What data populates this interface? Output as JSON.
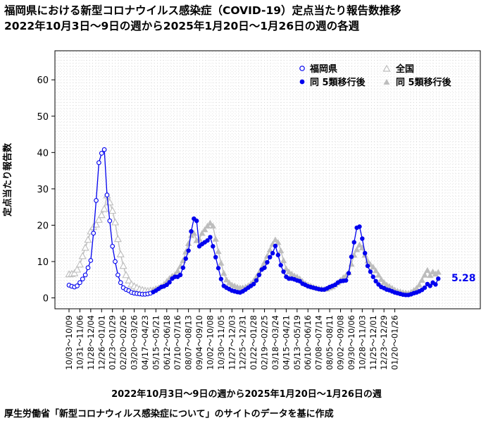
{
  "header": {
    "title": "福岡県における新型コロナウイルス感染症（COVID-19）定点当たり報告数推移",
    "subtitle": "2022年10月3日〜9日の週から2025年1月20日〜1月26日の週の各週"
  },
  "footer": {
    "x_caption": "2022年10月3日〜9日の週から2025年1月20日〜1月26日の週",
    "source": "厚生労働省「新型コロナウィルス感染症について」のサイトのデータを基に作成"
  },
  "colors": {
    "fukuoka": "#0000ee",
    "national": "#bdbdbd",
    "grid": "#d0d0d0"
  },
  "chart_data": {
    "type": "line",
    "ylabel": "定点当たり報告数",
    "ylim": [
      -3,
      68
    ],
    "yticks": [
      0,
      10,
      20,
      30,
      40,
      50,
      60
    ],
    "grid": true,
    "legend_position": "top-right",
    "legend": [
      {
        "label": "福岡県",
        "marker": "open-circle"
      },
      {
        "label": "全国",
        "marker": "open-triangle"
      },
      {
        "label": "同 5類移行後",
        "marker": "filled-circle"
      },
      {
        "label": "同 5類移行後",
        "marker": "filled-triangle"
      }
    ],
    "x_tick_labels": [
      "10/03～10/09",
      "10/31～11/06",
      "11/28～12/04",
      "12/26～01/01",
      "01/23～01/29",
      "02/20～02/26",
      "03/20～03/26",
      "04/17～04/23",
      "05/15～05/21",
      "06/12～06/18",
      "07/10～07/16",
      "08/07～08/13",
      "09/04～09/10",
      "10/02～10/08",
      "10/30～11/05",
      "11/27～12/03",
      "12/25～12/31",
      "01/22～01/28",
      "02/19～02/25",
      "03/18～03/24",
      "04/15～04/21",
      "05/13～05/19",
      "06/10～06/16",
      "07/08～07/14",
      "08/05～08/11",
      "09/02～09/08",
      "09/30～10/06",
      "10/28～11/03",
      "11/25～12/01",
      "12/23～12/29",
      "01/20～01/26"
    ],
    "phase_switch_index": 31,
    "last_value_label": "5.28",
    "series": [
      {
        "name": "福岡県",
        "values": [
          3.5,
          3.2,
          3.0,
          3.3,
          4.2,
          5.2,
          6.3,
          8.3,
          10.3,
          17.8,
          26.8,
          37.2,
          39.8,
          40.8,
          28.3,
          21.2,
          14.2,
          10.0,
          6.3,
          4.2,
          2.8,
          2.3,
          2.0,
          1.5,
          1.3,
          1.2,
          1.1,
          1.0,
          1.0,
          1.1,
          1.3,
          1.6,
          2.0,
          2.5,
          3.0,
          3.2,
          3.6,
          4.3,
          5.3,
          5.8,
          5.8,
          6.3,
          8.3,
          10.8,
          13.0,
          18.3,
          21.8,
          21.2,
          14.2,
          14.8,
          15.3,
          15.8,
          16.7,
          14.2,
          11.2,
          8.2,
          5.2,
          3.3,
          2.8,
          2.4,
          2.0,
          1.8,
          1.6,
          1.5,
          1.8,
          2.3,
          2.8,
          3.3,
          3.8,
          4.8,
          6.3,
          7.8,
          8.3,
          9.8,
          11.2,
          12.3,
          14.3,
          11.8,
          9.0,
          7.2,
          5.8,
          5.3,
          5.3,
          5.1,
          4.8,
          4.6,
          3.9,
          3.6,
          3.2,
          3.0,
          2.8,
          2.6,
          2.4,
          2.3,
          2.3,
          2.6,
          3.0,
          3.3,
          3.6,
          4.2,
          4.6,
          4.7,
          4.8,
          6.8,
          11.3,
          15.3,
          19.3,
          19.6,
          16.3,
          12.3,
          8.8,
          7.2,
          5.8,
          4.6,
          3.7,
          3.0,
          2.7,
          2.3,
          2.1,
          1.8,
          1.5,
          1.3,
          1.1,
          0.9,
          0.8,
          0.8,
          1.0,
          1.3,
          1.5,
          1.8,
          2.2,
          2.8,
          3.8,
          3.3,
          4.2,
          3.7,
          5.28
        ]
      },
      {
        "name": "全国",
        "values": [
          6.5,
          6.6,
          6.8,
          7.8,
          9.2,
          11.5,
          13.8,
          16.0,
          18.3,
          19.5,
          20.2,
          21.5,
          22.8,
          24.5,
          28.2,
          26.3,
          24.0,
          20.8,
          16.2,
          12.0,
          8.8,
          6.3,
          4.8,
          3.7,
          3.2,
          2.8,
          2.4,
          2.2,
          2.0,
          1.9,
          2.0,
          2.3,
          2.6,
          2.8,
          3.2,
          3.8,
          4.6,
          5.4,
          6.0,
          6.4,
          7.4,
          8.7,
          10.3,
          12.7,
          15.0,
          17.2,
          17.8,
          15.8,
          16.2,
          17.8,
          18.8,
          19.8,
          20.6,
          19.8,
          16.2,
          12.8,
          9.6,
          6.8,
          5.0,
          4.2,
          3.6,
          3.3,
          3.0,
          2.8,
          2.8,
          3.0,
          3.4,
          3.9,
          4.7,
          5.8,
          7.0,
          8.3,
          9.8,
          11.5,
          13.2,
          14.8,
          16.0,
          15.3,
          13.0,
          10.3,
          8.0,
          7.2,
          6.6,
          6.1,
          5.8,
          5.3,
          4.6,
          4.0,
          3.6,
          3.3,
          3.0,
          2.8,
          2.6,
          2.5,
          2.4,
          2.5,
          2.8,
          3.1,
          3.6,
          4.2,
          4.9,
          5.6,
          6.2,
          7.0,
          9.3,
          11.8,
          13.3,
          14.6,
          13.8,
          11.8,
          10.2,
          9.2,
          8.5,
          7.5,
          6.3,
          5.1,
          4.3,
          3.6,
          3.2,
          2.7,
          2.2,
          1.9,
          1.7,
          1.5,
          1.4,
          1.3,
          1.6,
          2.1,
          2.7,
          3.6,
          4.9,
          6.3,
          7.6,
          6.2,
          7.2,
          6.6,
          7.1
        ]
      }
    ]
  }
}
